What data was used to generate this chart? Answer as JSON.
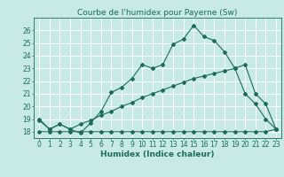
{
  "title": "Courbe de l'humidex pour Payerne (Sw)",
  "xlabel": "Humidex (Indice chaleur)",
  "background_color": "#c8eae6",
  "grid_color": "#ffffff",
  "line_color": "#1a6b5a",
  "ylim": [
    17.5,
    27.0
  ],
  "xlim": [
    -0.5,
    23.5
  ],
  "yticks": [
    18,
    19,
    20,
    21,
    22,
    23,
    24,
    25,
    26
  ],
  "xticks": [
    0,
    1,
    2,
    3,
    4,
    5,
    6,
    7,
    8,
    9,
    10,
    11,
    12,
    13,
    14,
    15,
    16,
    17,
    18,
    19,
    20,
    21,
    22,
    23
  ],
  "line1_x": [
    0,
    1,
    2,
    3,
    4,
    5,
    6,
    7,
    8,
    9,
    10,
    11,
    12,
    13,
    14,
    15,
    16,
    17,
    18,
    19,
    20,
    21,
    22,
    23
  ],
  "line1_y": [
    19.0,
    18.2,
    18.6,
    18.2,
    17.9,
    18.7,
    19.6,
    21.1,
    21.5,
    22.2,
    23.3,
    23.0,
    23.3,
    24.9,
    25.3,
    26.4,
    25.5,
    25.2,
    24.3,
    23.0,
    21.0,
    20.2,
    19.0,
    18.2
  ],
  "line2_x": [
    0,
    1,
    2,
    3,
    4,
    5,
    6,
    7,
    8,
    9,
    10,
    11,
    12,
    13,
    14,
    15,
    16,
    17,
    18,
    19,
    20,
    21,
    22,
    23
  ],
  "line2_y": [
    18.0,
    18.0,
    18.0,
    18.0,
    18.0,
    18.0,
    18.0,
    18.0,
    18.0,
    18.0,
    18.0,
    18.0,
    18.0,
    18.0,
    18.0,
    18.0,
    18.0,
    18.0,
    18.0,
    18.0,
    18.0,
    18.0,
    18.0,
    18.2
  ],
  "line3_x": [
    0,
    1,
    2,
    3,
    4,
    5,
    6,
    7,
    8,
    9,
    10,
    11,
    12,
    13,
    14,
    15,
    16,
    17,
    18,
    19,
    20,
    21,
    22,
    23
  ],
  "line3_y": [
    18.9,
    18.2,
    18.6,
    18.2,
    18.6,
    18.9,
    19.3,
    19.6,
    20.0,
    20.3,
    20.7,
    21.0,
    21.3,
    21.6,
    21.9,
    22.2,
    22.4,
    22.6,
    22.8,
    23.0,
    23.3,
    21.0,
    20.2,
    18.2
  ],
  "title_fontsize": 6.5,
  "axis_fontsize": 6.5,
  "tick_fontsize": 5.5
}
